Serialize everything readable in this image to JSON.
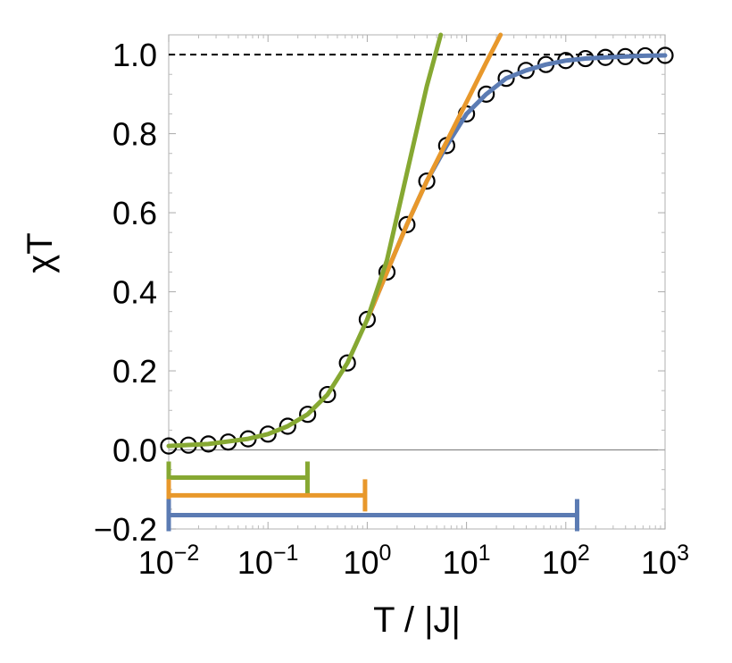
{
  "chart_data": {
    "type": "line",
    "title": "",
    "xlabel": "T / |J|",
    "ylabel": "χT",
    "xscale": "log",
    "xlim": [
      0.01,
      1000
    ],
    "ylim": [
      -0.2,
      1.05
    ],
    "grid": false,
    "legend": "none",
    "x_ticks": [
      {
        "value": 0.01,
        "base": "10",
        "exp": "−2"
      },
      {
        "value": 0.1,
        "base": "10",
        "exp": "−1"
      },
      {
        "value": 1,
        "base": "10",
        "exp": "0"
      },
      {
        "value": 10,
        "base": "10",
        "exp": "1"
      },
      {
        "value": 100,
        "base": "10",
        "exp": "2"
      },
      {
        "value": 1000,
        "base": "10",
        "exp": "3"
      }
    ],
    "y_ticks": [
      {
        "value": -0.2,
        "label": "−0.2"
      },
      {
        "value": 0.0,
        "label": "0.0"
      },
      {
        "value": 0.2,
        "label": "0.2"
      },
      {
        "value": 0.4,
        "label": "0.4"
      },
      {
        "value": 0.6,
        "label": "0.6"
      },
      {
        "value": 0.8,
        "label": "0.8"
      },
      {
        "value": 1.0,
        "label": "1.0"
      }
    ],
    "reference_line": {
      "y": 1.0,
      "style": "dashed",
      "color": "#000000"
    },
    "markers": {
      "style": "open-circle",
      "color": "#000000",
      "x": [
        0.01,
        0.0158,
        0.0251,
        0.0398,
        0.0631,
        0.1,
        0.158,
        0.251,
        0.398,
        0.631,
        1,
        1.58,
        2.51,
        3.98,
        6.31,
        10,
        15.8,
        25.1,
        39.8,
        63.1,
        100,
        158,
        251,
        398,
        631,
        1000
      ],
      "y": [
        0.01,
        0.012,
        0.015,
        0.02,
        0.028,
        0.04,
        0.06,
        0.09,
        0.14,
        0.22,
        0.33,
        0.45,
        0.57,
        0.68,
        0.77,
        0.85,
        0.9,
        0.94,
        0.96,
        0.975,
        0.985,
        0.99,
        0.993,
        0.995,
        0.997,
        0.998
      ]
    },
    "series": [
      {
        "color": "#5b7bb3",
        "x": [
          1,
          1.58,
          2.51,
          3.98,
          6.31,
          10,
          15.8,
          25.1,
          39.8,
          63.1,
          100,
          158,
          251,
          398,
          631,
          1000
        ],
        "y": [
          0.33,
          0.45,
          0.57,
          0.68,
          0.77,
          0.85,
          0.9,
          0.94,
          0.96,
          0.975,
          0.985,
          0.99,
          0.993,
          0.995,
          0.997,
          0.998
        ]
      },
      {
        "color": "#e8982b",
        "x": [
          1,
          1.58,
          2.51,
          3.98,
          6.31,
          10,
          15.8,
          22
        ],
        "y": [
          0.33,
          0.45,
          0.57,
          0.68,
          0.78,
          0.88,
          0.98,
          1.05
        ]
      },
      {
        "color": "#86a832",
        "x": [
          0.01,
          0.0251,
          0.0631,
          0.1,
          0.158,
          0.251,
          0.398,
          0.631,
          1,
          1.58,
          2.51,
          3.98,
          5.5
        ],
        "y": [
          0.01,
          0.015,
          0.028,
          0.04,
          0.06,
          0.09,
          0.14,
          0.22,
          0.33,
          0.48,
          0.7,
          0.92,
          1.05
        ]
      }
    ],
    "range_bars": [
      {
        "color": "#86a832",
        "y": -0.07,
        "x_start": 0.01,
        "x_end": 0.25
      },
      {
        "color": "#e8982b",
        "y": -0.115,
        "x_start": 0.01,
        "x_end": 0.95
      },
      {
        "color": "#5b7bb3",
        "y": -0.165,
        "x_start": 0.01,
        "x_end": 130
      }
    ]
  }
}
